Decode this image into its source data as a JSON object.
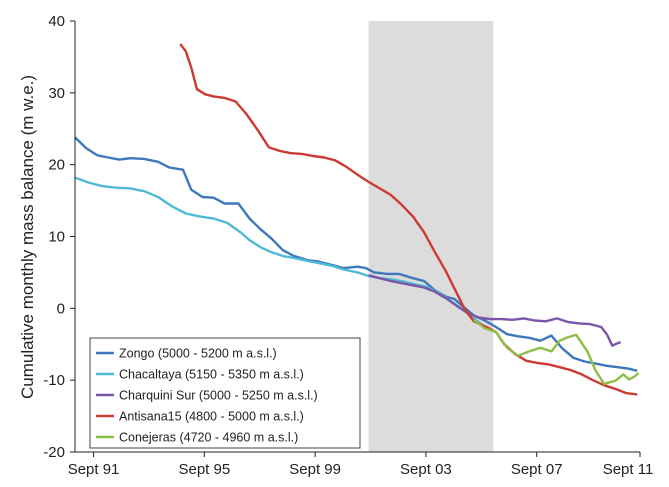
{
  "chart_data": {
    "type": "line",
    "ylabel": "Cumulative monthly mass balance (m w.e.)",
    "xlabel": "",
    "xlim": [
      1991.0,
      2011.4
    ],
    "ylim": [
      -20,
      40
    ],
    "y_ticks": [
      40,
      30,
      20,
      10,
      0,
      -10,
      -20
    ],
    "x_ticks": [
      {
        "label": "Sept 91",
        "value": 1991.67
      },
      {
        "label": "Sept 95",
        "value": 1995.67
      },
      {
        "label": "Sept 99",
        "value": 1999.67
      },
      {
        "label": "Sept 03",
        "value": 2003.67
      },
      {
        "label": "Sept 07",
        "value": 2007.67
      },
      {
        "label": "Sept 11",
        "value": 2011.67
      }
    ],
    "shaded_period": [
      2001.6,
      2006.1
    ],
    "grid": false,
    "legend_position": "bottom-left",
    "series": [
      {
        "name": "Zongo (5000 - 5200 m a.s.l.)",
        "color": "#3d78bd",
        "points": [
          [
            1991.0,
            23.8
          ],
          [
            1991.4,
            22.3
          ],
          [
            1991.8,
            21.3
          ],
          [
            1992.2,
            21.0
          ],
          [
            1992.6,
            20.7
          ],
          [
            1993.0,
            20.9
          ],
          [
            1993.5,
            20.8
          ],
          [
            1994.0,
            20.4
          ],
          [
            1994.4,
            19.6
          ],
          [
            1994.9,
            19.3
          ],
          [
            1995.2,
            16.5
          ],
          [
            1995.6,
            15.5
          ],
          [
            1996.0,
            15.4
          ],
          [
            1996.4,
            14.6
          ],
          [
            1996.9,
            14.6
          ],
          [
            1997.3,
            12.5
          ],
          [
            1997.7,
            11.0
          ],
          [
            1998.1,
            9.7
          ],
          [
            1998.5,
            8.1
          ],
          [
            1998.9,
            7.3
          ],
          [
            1999.4,
            6.7
          ],
          [
            1999.8,
            6.5
          ],
          [
            2000.3,
            6.0
          ],
          [
            2000.7,
            5.6
          ],
          [
            2001.2,
            5.8
          ],
          [
            2001.5,
            5.6
          ],
          [
            2001.8,
            5.0
          ],
          [
            2002.3,
            4.8
          ],
          [
            2002.7,
            4.8
          ],
          [
            2003.2,
            4.2
          ],
          [
            2003.6,
            3.8
          ],
          [
            2004.0,
            2.5
          ],
          [
            2004.4,
            1.6
          ],
          [
            2004.7,
            1.3
          ],
          [
            2005.0,
            0.3
          ],
          [
            2005.4,
            -1.0
          ],
          [
            2005.8,
            -1.7
          ],
          [
            2006.2,
            -2.6
          ],
          [
            2006.6,
            -3.6
          ],
          [
            2007.0,
            -3.9
          ],
          [
            2007.4,
            -4.1
          ],
          [
            2007.8,
            -4.5
          ],
          [
            2008.2,
            -3.8
          ],
          [
            2008.6,
            -5.6
          ],
          [
            2009.0,
            -6.9
          ],
          [
            2009.4,
            -7.4
          ],
          [
            2009.8,
            -7.7
          ],
          [
            2010.2,
            -8.0
          ],
          [
            2010.6,
            -8.2
          ],
          [
            2011.0,
            -8.4
          ],
          [
            2011.3,
            -8.7
          ]
        ]
      },
      {
        "name": "Chacaltaya (5150 - 5350 m a.s.l.)",
        "color": "#4fbad6",
        "points": [
          [
            1991.0,
            18.2
          ],
          [
            1991.5,
            17.5
          ],
          [
            1992.0,
            17.0
          ],
          [
            1992.5,
            16.8
          ],
          [
            1993.0,
            16.7
          ],
          [
            1993.5,
            16.3
          ],
          [
            1994.0,
            15.5
          ],
          [
            1994.5,
            14.2
          ],
          [
            1995.0,
            13.2
          ],
          [
            1995.5,
            12.8
          ],
          [
            1996.0,
            12.5
          ],
          [
            1996.5,
            11.9
          ],
          [
            1997.0,
            10.5
          ],
          [
            1997.3,
            9.5
          ],
          [
            1997.7,
            8.5
          ],
          [
            1998.1,
            7.8
          ],
          [
            1998.5,
            7.3
          ],
          [
            1998.9,
            7.0
          ],
          [
            1999.4,
            6.6
          ],
          [
            1999.8,
            6.3
          ],
          [
            2000.3,
            5.9
          ],
          [
            2000.7,
            5.4
          ],
          [
            2001.2,
            5.0
          ],
          [
            2001.6,
            4.5
          ],
          [
            2002.0,
            4.2
          ],
          [
            2002.5,
            4.0
          ],
          [
            2002.9,
            3.7
          ],
          [
            2003.3,
            3.3
          ],
          [
            2003.7,
            3.0
          ],
          [
            2004.1,
            2.2
          ],
          [
            2004.5,
            1.2
          ],
          [
            2004.9,
            0.1
          ],
          [
            2005.3,
            -1.1
          ],
          [
            2005.7,
            -2.3
          ]
        ]
      },
      {
        "name": "Charquini Sur (5000 - 5250 m a.s.l.)",
        "color": "#7a55aa",
        "points": [
          [
            2001.6,
            4.6
          ],
          [
            2002.0,
            4.2
          ],
          [
            2002.4,
            3.8
          ],
          [
            2002.8,
            3.5
          ],
          [
            2003.2,
            3.2
          ],
          [
            2003.6,
            2.9
          ],
          [
            2004.0,
            2.3
          ],
          [
            2004.4,
            1.4
          ],
          [
            2004.8,
            0.3
          ],
          [
            2005.2,
            -0.7
          ],
          [
            2005.6,
            -1.3
          ],
          [
            2006.0,
            -1.5
          ],
          [
            2006.4,
            -1.5
          ],
          [
            2006.8,
            -1.6
          ],
          [
            2007.2,
            -1.4
          ],
          [
            2007.6,
            -1.7
          ],
          [
            2008.0,
            -1.8
          ],
          [
            2008.4,
            -1.4
          ],
          [
            2008.8,
            -1.9
          ],
          [
            2009.2,
            -2.1
          ],
          [
            2009.6,
            -2.2
          ],
          [
            2010.0,
            -2.6
          ],
          [
            2010.2,
            -3.6
          ],
          [
            2010.4,
            -5.2
          ],
          [
            2010.5,
            -5.0
          ],
          [
            2010.7,
            -4.7
          ]
        ]
      },
      {
        "name": "Antisana15 (4800 - 5000 m a.s.l.)",
        "color": "#cc3b33",
        "points": [
          [
            1994.8,
            36.8
          ],
          [
            1995.0,
            35.8
          ],
          [
            1995.2,
            33.5
          ],
          [
            1995.4,
            30.5
          ],
          [
            1995.7,
            29.8
          ],
          [
            1996.0,
            29.5
          ],
          [
            1996.4,
            29.3
          ],
          [
            1996.8,
            28.8
          ],
          [
            1997.2,
            27.0
          ],
          [
            1997.6,
            24.8
          ],
          [
            1998.0,
            22.4
          ],
          [
            1998.4,
            21.9
          ],
          [
            1998.8,
            21.6
          ],
          [
            1999.2,
            21.5
          ],
          [
            1999.6,
            21.2
          ],
          [
            2000.0,
            21.0
          ],
          [
            2000.4,
            20.6
          ],
          [
            2000.8,
            19.7
          ],
          [
            2001.2,
            18.6
          ],
          [
            2001.6,
            17.6
          ],
          [
            2002.0,
            16.7
          ],
          [
            2002.4,
            15.8
          ],
          [
            2002.8,
            14.4
          ],
          [
            2003.2,
            12.8
          ],
          [
            2003.6,
            10.6
          ],
          [
            2004.0,
            7.8
          ],
          [
            2004.4,
            5.1
          ],
          [
            2004.8,
            2.0
          ],
          [
            2005.1,
            -0.3
          ],
          [
            2005.4,
            -1.8
          ],
          [
            2005.8,
            -2.5
          ],
          [
            2006.2,
            -3.3
          ],
          [
            2006.5,
            -5.0
          ],
          [
            2006.9,
            -6.4
          ],
          [
            2007.3,
            -7.3
          ],
          [
            2007.7,
            -7.6
          ],
          [
            2008.1,
            -7.8
          ],
          [
            2008.5,
            -8.2
          ],
          [
            2008.9,
            -8.6
          ],
          [
            2009.3,
            -9.2
          ],
          [
            2009.7,
            -10.0
          ],
          [
            2010.1,
            -10.7
          ],
          [
            2010.5,
            -11.2
          ],
          [
            2010.9,
            -11.8
          ],
          [
            2011.3,
            -12.0
          ]
        ]
      },
      {
        "name": "Conejeras (4720 - 4960 m a.s.l.)",
        "color": "#8dbf47",
        "points": [
          [
            2005.4,
            -1.6
          ],
          [
            2005.8,
            -2.8
          ],
          [
            2006.2,
            -3.3
          ],
          [
            2006.6,
            -5.5
          ],
          [
            2007.0,
            -6.6
          ],
          [
            2007.4,
            -6.0
          ],
          [
            2007.8,
            -5.5
          ],
          [
            2008.2,
            -6.0
          ],
          [
            2008.5,
            -4.5
          ],
          [
            2008.8,
            -4.0
          ],
          [
            2009.1,
            -3.7
          ],
          [
            2009.5,
            -6.0
          ],
          [
            2009.8,
            -8.7
          ],
          [
            2010.1,
            -10.5
          ],
          [
            2010.5,
            -10.1
          ],
          [
            2010.8,
            -9.2
          ],
          [
            2011.0,
            -9.9
          ],
          [
            2011.2,
            -9.5
          ],
          [
            2011.35,
            -9.0
          ]
        ]
      }
    ]
  }
}
